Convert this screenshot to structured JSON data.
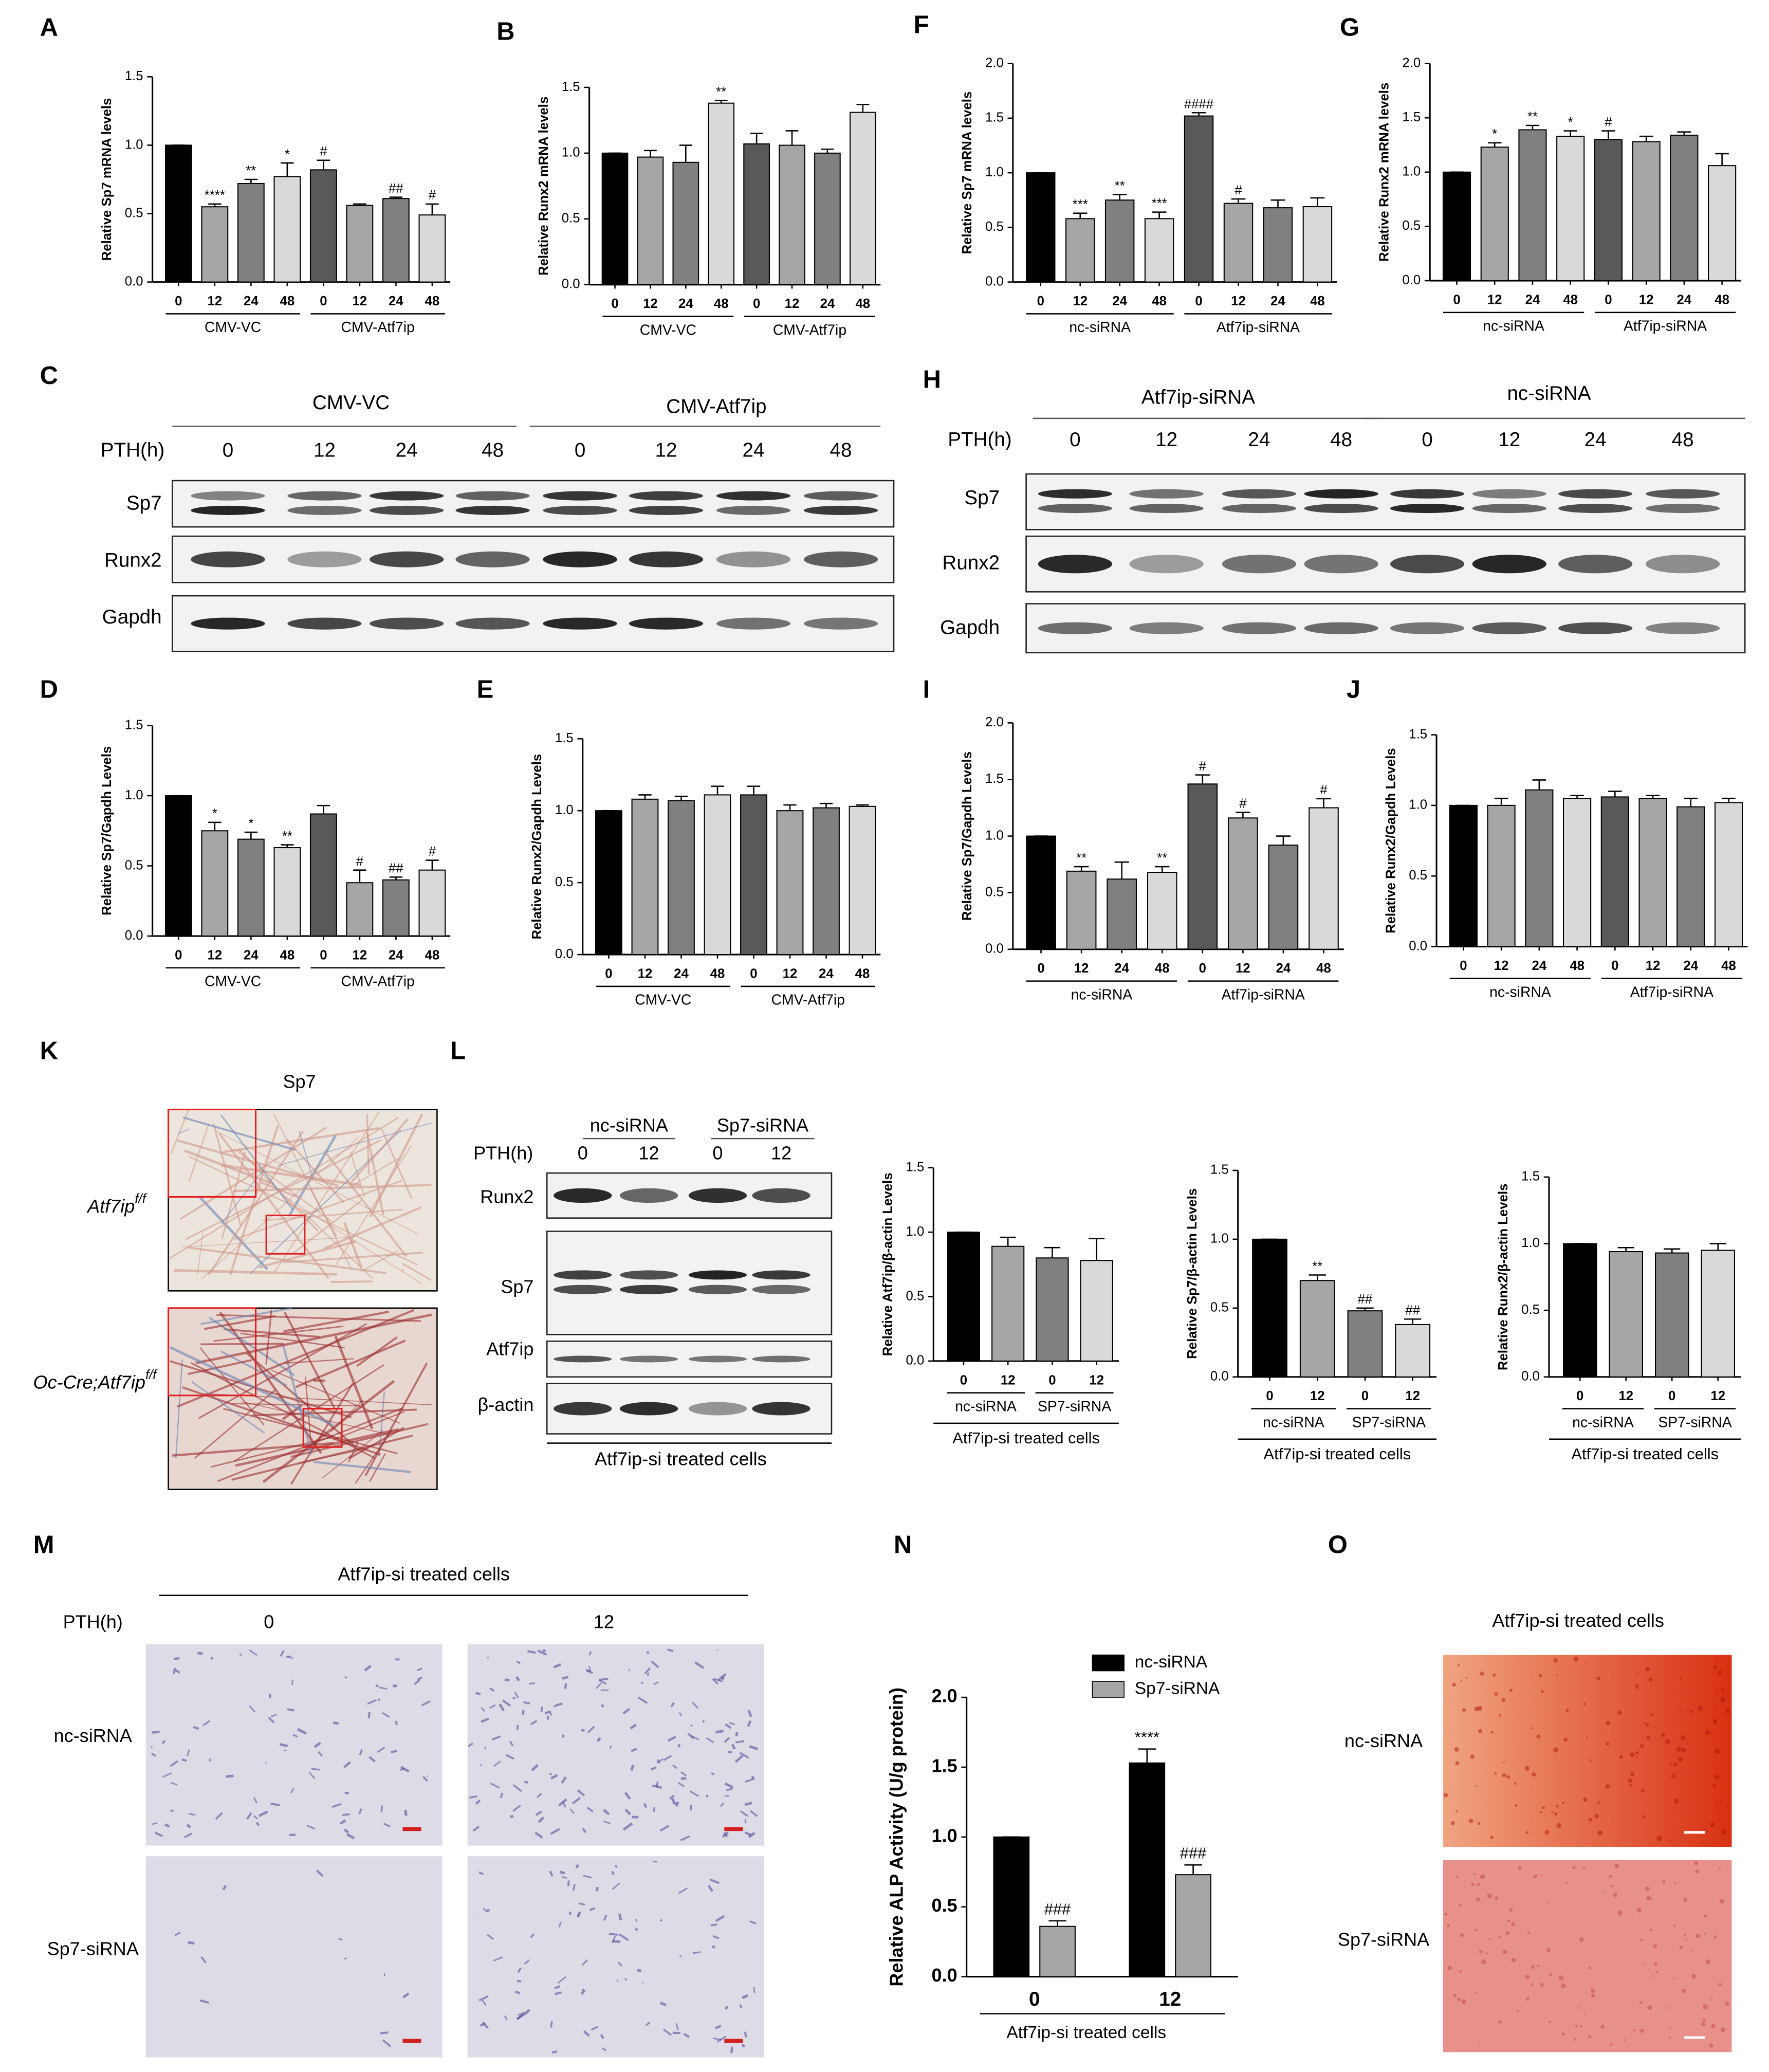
{
  "chart_data": [
    {
      "type": "bar",
      "ylabel": "Relative Sp7 mRNA levels",
      "categories": [
        "0",
        "12",
        "24",
        "48",
        "0",
        "12",
        "24",
        "48"
      ],
      "groups": [
        "CMV-VC",
        "CMV-Atf7ip"
      ],
      "values": [
        1.0,
        0.55,
        0.72,
        0.77,
        0.82,
        0.56,
        0.61,
        0.49
      ],
      "errors": [
        0,
        0.02,
        0.03,
        0.1,
        0.07,
        0.01,
        0.01,
        0.08
      ],
      "annotations": [
        null,
        "****",
        "**",
        "*",
        "#",
        null,
        "##",
        "#"
      ],
      "colors": [
        "#000000",
        "#a6a6a6",
        "#808080",
        "#d9d9d9",
        "#595959",
        "#a6a6a6",
        "#808080",
        "#d9d9d9"
      ],
      "ylim": [
        0,
        1.5
      ],
      "yticks": [
        {
          "value": 0,
          "label": "0.0"
        },
        0.5,
        {
          "value": 1,
          "label": "1.0"
        },
        1.5
      ]
    },
    {
      "type": "bar",
      "ylabel": "Relative Runx2 mRNA levels",
      "categories": [
        "0",
        "12",
        "24",
        "48",
        "0",
        "12",
        "24",
        "48"
      ],
      "groups": [
        "CMV-VC",
        "CMV-Atf7ip"
      ],
      "values": [
        1.0,
        0.97,
        0.93,
        1.38,
        1.07,
        1.06,
        1.0,
        1.31
      ],
      "errors": [
        0,
        0.05,
        0.13,
        0.02,
        0.08,
        0.11,
        0.03,
        0.06
      ],
      "annotations": [
        null,
        null,
        null,
        "**",
        null,
        null,
        null,
        null
      ],
      "colors": [
        "#000000",
        "#a6a6a6",
        "#808080",
        "#d9d9d9",
        "#595959",
        "#a6a6a6",
        "#808080",
        "#d9d9d9"
      ],
      "ylim": [
        0,
        1.5
      ],
      "yticks": [
        {
          "value": 0,
          "label": "0.0"
        },
        0.5,
        {
          "value": 1,
          "label": "1.0"
        },
        1.5
      ]
    },
    {
      "type": "bar",
      "ylabel": "Relative Sp7 mRNA levels",
      "categories": [
        "0",
        "12",
        "24",
        "48",
        "0",
        "12",
        "24",
        "48"
      ],
      "groups": [
        "nc-siRNA",
        "Atf7ip-siRNA"
      ],
      "values": [
        1.0,
        0.58,
        0.75,
        0.58,
        1.52,
        0.72,
        0.68,
        0.69
      ],
      "errors": [
        0,
        0.05,
        0.05,
        0.06,
        0.03,
        0.04,
        0.07,
        0.08
      ],
      "annotations": [
        null,
        "***",
        "**",
        "***",
        "####",
        "#",
        null,
        null
      ],
      "colors": [
        "#000000",
        "#a6a6a6",
        "#808080",
        "#d9d9d9",
        "#595959",
        "#a6a6a6",
        "#808080",
        "#d9d9d9"
      ],
      "ylim": [
        0,
        2
      ],
      "yticks": [
        {
          "value": 0,
          "label": "0.0"
        },
        0.5,
        {
          "value": 1,
          "label": "1.0"
        },
        1.5,
        {
          "value": 2,
          "label": "2.0"
        }
      ]
    },
    {
      "type": "bar",
      "ylabel": "Relative Runx2 mRNA levels",
      "categories": [
        "0",
        "12",
        "24",
        "48",
        "0",
        "12",
        "24",
        "48"
      ],
      "groups": [
        "nc-siRNA",
        "Atf7ip-siRNA"
      ],
      "values": [
        1.0,
        1.23,
        1.39,
        1.33,
        1.3,
        1.28,
        1.34,
        1.06
      ],
      "errors": [
        0,
        0.04,
        0.04,
        0.05,
        0.08,
        0.05,
        0.03,
        0.11
      ],
      "annotations": [
        null,
        "*",
        "**",
        "*",
        "#",
        null,
        null,
        null
      ],
      "colors": [
        "#000000",
        "#a6a6a6",
        "#808080",
        "#d9d9d9",
        "#595959",
        "#a6a6a6",
        "#808080",
        "#d9d9d9"
      ],
      "ylim": [
        0,
        2
      ],
      "yticks": [
        {
          "value": 0,
          "label": "0.0"
        },
        0.5,
        {
          "value": 1,
          "label": "1.0"
        },
        1.5,
        {
          "value": 2,
          "label": "2.0"
        }
      ]
    },
    {
      "type": "bar",
      "ylabel": "Relative Sp7/Gapdh Levels",
      "categories": [
        "0",
        "12",
        "24",
        "48",
        "0",
        "12",
        "24",
        "48"
      ],
      "groups": [
        "CMV-VC",
        "CMV-Atf7ip"
      ],
      "values": [
        1.0,
        0.75,
        0.69,
        0.63,
        0.87,
        0.38,
        0.4,
        0.47
      ],
      "errors": [
        0,
        0.06,
        0.05,
        0.02,
        0.06,
        0.09,
        0.02,
        0.07
      ],
      "annotations": [
        null,
        "*",
        "*",
        "**",
        null,
        "#",
        "##",
        "#"
      ],
      "colors": [
        "#000000",
        "#a6a6a6",
        "#808080",
        "#d9d9d9",
        "#595959",
        "#a6a6a6",
        "#808080",
        "#d9d9d9"
      ],
      "ylim": [
        0,
        1.5
      ],
      "yticks": [
        {
          "value": 0,
          "label": "0.0"
        },
        0.5,
        {
          "value": 1,
          "label": "1.0"
        },
        1.5
      ]
    },
    {
      "type": "bar",
      "ylabel": "Relative Runx2/Gapdh Levels",
      "categories": [
        "0",
        "12",
        "24",
        "48",
        "0",
        "12",
        "24",
        "48"
      ],
      "groups": [
        "CMV-VC",
        "CMV-Atf7ip"
      ],
      "values": [
        1.0,
        1.08,
        1.07,
        1.11,
        1.11,
        1.0,
        1.02,
        1.03
      ],
      "errors": [
        0,
        0.03,
        0.03,
        0.06,
        0.06,
        0.04,
        0.03,
        0.01
      ],
      "annotations": [
        null,
        null,
        null,
        null,
        null,
        null,
        null,
        null
      ],
      "colors": [
        "#000000",
        "#a6a6a6",
        "#808080",
        "#d9d9d9",
        "#595959",
        "#a6a6a6",
        "#808080",
        "#d9d9d9"
      ],
      "ylim": [
        0,
        1.5
      ],
      "yticks": [
        {
          "value": 0,
          "label": "0.0"
        },
        0.5,
        {
          "value": 1,
          "label": "1.0"
        },
        1.5
      ]
    },
    {
      "type": "bar",
      "ylabel": "Relative Sp7/Gapdh Levels",
      "categories": [
        "0",
        "12",
        "24",
        "48",
        "0",
        "12",
        "24",
        "48"
      ],
      "groups": [
        "nc-siRNA",
        "Atf7ip-siRNA"
      ],
      "values": [
        1.0,
        0.69,
        0.62,
        0.68,
        1.46,
        1.16,
        0.92,
        1.25
      ],
      "errors": [
        0,
        0.04,
        0.15,
        0.05,
        0.08,
        0.05,
        0.08,
        0.08
      ],
      "annotations": [
        null,
        "**",
        null,
        "**",
        "#",
        "#",
        null,
        "#"
      ],
      "colors": [
        "#000000",
        "#a6a6a6",
        "#808080",
        "#d9d9d9",
        "#595959",
        "#a6a6a6",
        "#808080",
        "#d9d9d9"
      ],
      "ylim": [
        0,
        2
      ],
      "yticks": [
        {
          "value": 0,
          "label": "0.0"
        },
        0.5,
        {
          "value": 1,
          "label": "1.0"
        },
        1.5,
        {
          "value": 2,
          "label": "2.0"
        }
      ]
    },
    {
      "type": "bar",
      "ylabel": "Relative Runx2/Gapdh Levels",
      "categories": [
        "0",
        "12",
        "24",
        "48",
        "0",
        "12",
        "24",
        "48"
      ],
      "groups": [
        "nc-siRNA",
        "Atf7ip-siRNA"
      ],
      "values": [
        1.0,
        1.0,
        1.11,
        1.05,
        1.06,
        1.05,
        0.99,
        1.02
      ],
      "errors": [
        0,
        0.05,
        0.07,
        0.02,
        0.04,
        0.02,
        0.06,
        0.03
      ],
      "annotations": [
        null,
        null,
        null,
        null,
        null,
        null,
        null,
        null
      ],
      "colors": [
        "#000000",
        "#a6a6a6",
        "#808080",
        "#d9d9d9",
        "#595959",
        "#a6a6a6",
        "#808080",
        "#d9d9d9"
      ],
      "ylim": [
        0,
        1.5
      ],
      "yticks": [
        {
          "value": 0,
          "label": "0.0"
        },
        0.5,
        {
          "value": 1,
          "label": "1.0"
        },
        1.5
      ]
    },
    {
      "type": "bar",
      "ylabel": "Relative Atf7ip/β-actin Levels",
      "categories": [
        "0",
        "12",
        "0",
        "12"
      ],
      "groups": [
        "nc-siRNA",
        "SP7-siRNA"
      ],
      "xlabel": "Atf7ip-si treated cells",
      "values": [
        1.0,
        0.89,
        0.8,
        0.78
      ],
      "errors": [
        0,
        0.07,
        0.08,
        0.17
      ],
      "annotations": [
        null,
        null,
        null,
        null
      ],
      "colors": [
        "#000000",
        "#a6a6a6",
        "#808080",
        "#d9d9d9"
      ],
      "ylim": [
        0,
        1.5
      ],
      "yticks": [
        {
          "value": 0,
          "label": "0.0"
        },
        0.5,
        {
          "value": 1,
          "label": "1.0"
        },
        1.5
      ]
    },
    {
      "type": "bar",
      "ylabel": "Relative Sp7/β-actin Levels",
      "categories": [
        "0",
        "12",
        "0",
        "12"
      ],
      "groups": [
        "nc-siRNA",
        "SP7-siRNA"
      ],
      "xlabel": "Atf7ip-si treated cells",
      "values": [
        1.0,
        0.7,
        0.48,
        0.38
      ],
      "errors": [
        0,
        0.04,
        0.02,
        0.04
      ],
      "annotations": [
        null,
        "**",
        "##",
        "##"
      ],
      "colors": [
        "#000000",
        "#a6a6a6",
        "#808080",
        "#d9d9d9"
      ],
      "ylim": [
        0,
        1.5
      ],
      "yticks": [
        {
          "value": 0,
          "label": "0.0"
        },
        0.5,
        {
          "value": 1,
          "label": "1.0"
        },
        1.5
      ]
    },
    {
      "type": "bar",
      "ylabel": "Relative Runx2/β-actin Levels",
      "categories": [
        "0",
        "12",
        "0",
        "12"
      ],
      "groups": [
        "nc-siRNA",
        "SP7-siRNA"
      ],
      "xlabel": "Atf7ip-si treated cells",
      "values": [
        1.0,
        0.94,
        0.93,
        0.95
      ],
      "errors": [
        0,
        0.03,
        0.03,
        0.05
      ],
      "annotations": [
        null,
        null,
        null,
        null
      ],
      "colors": [
        "#000000",
        "#a6a6a6",
        "#808080",
        "#d9d9d9"
      ],
      "ylim": [
        0,
        1.5
      ],
      "yticks": [
        {
          "value": 0,
          "label": "0.0"
        },
        0.5,
        {
          "value": 1,
          "label": "1.0"
        },
        1.5
      ]
    },
    {
      "type": "grouped_bar",
      "ylabel": "Relative ALP Activity (U/g protein)",
      "categories": [
        "0",
        "12"
      ],
      "xlabel": "Atf7ip-si treated cells",
      "legend": "upper right",
      "series": [
        {
          "name": "nc-siRNA",
          "color": "#000000",
          "values": [
            1.0,
            1.53
          ],
          "errors": [
            0,
            0.1
          ],
          "annotations": [
            null,
            "****"
          ]
        },
        {
          "name": "Sp7-siRNA",
          "color": "#a6a6a6",
          "values": [
            0.36,
            0.73
          ],
          "errors": [
            0.04,
            0.07
          ],
          "annotations": [
            "###",
            "###"
          ]
        }
      ],
      "ylim": [
        0,
        2
      ],
      "yticks": [
        {
          "value": 0,
          "label": "0.0"
        },
        0.5,
        {
          "value": 1,
          "label": "1.0"
        },
        1.5,
        {
          "value": 2,
          "label": "2.0"
        }
      ]
    }
  ],
  "panel_labels": [
    "A",
    "B",
    "F",
    "G",
    "C",
    "H",
    "D",
    "E",
    "I",
    "J",
    "K",
    "L",
    "M",
    "N",
    "O"
  ],
  "blot_C": {
    "groups": [
      "CMV-VC",
      "CMV-Atf7ip"
    ],
    "time_label": "PTH(h)",
    "times": [
      "0",
      "12",
      "24",
      "48",
      "0",
      "12",
      "24",
      "48"
    ],
    "rows": [
      "Sp7",
      "Runx2",
      "Gapdh"
    ]
  },
  "blot_H": {
    "groups": [
      "Atf7ip-siRNA",
      "nc-siRNA"
    ],
    "time_label": "PTH(h)",
    "times": [
      "0",
      "12",
      "24",
      "48",
      "0",
      "12",
      "24",
      "48"
    ],
    "rows": [
      "Sp7",
      "Runx2",
      "Gapdh"
    ]
  },
  "histology_K": {
    "title": "Sp7",
    "rows": [
      {
        "label": "Atf7ip",
        "superscript": "f/f"
      },
      {
        "label": "Oc-Cre;Atf7ip",
        "superscript": "f/f"
      }
    ]
  },
  "blot_L": {
    "groups": [
      "nc-siRNA",
      "Sp7-siRNA"
    ],
    "time_label": "PTH(h)",
    "times": [
      "0",
      "12",
      "0",
      "12"
    ],
    "rows": [
      "Runx2",
      "Sp7",
      "Atf7ip",
      "β-actin"
    ],
    "caption": "Atf7ip-si treated cells"
  },
  "stain_M": {
    "title": "Atf7ip-si treated cells",
    "time_label": "PTH(h)",
    "times": [
      "0",
      "12"
    ],
    "rows": [
      "nc-siRNA",
      "Sp7-siRNA"
    ]
  },
  "stain_O": {
    "title": "Atf7ip-si treated cells",
    "rows": [
      "nc-siRNA",
      "Sp7-siRNA"
    ]
  }
}
